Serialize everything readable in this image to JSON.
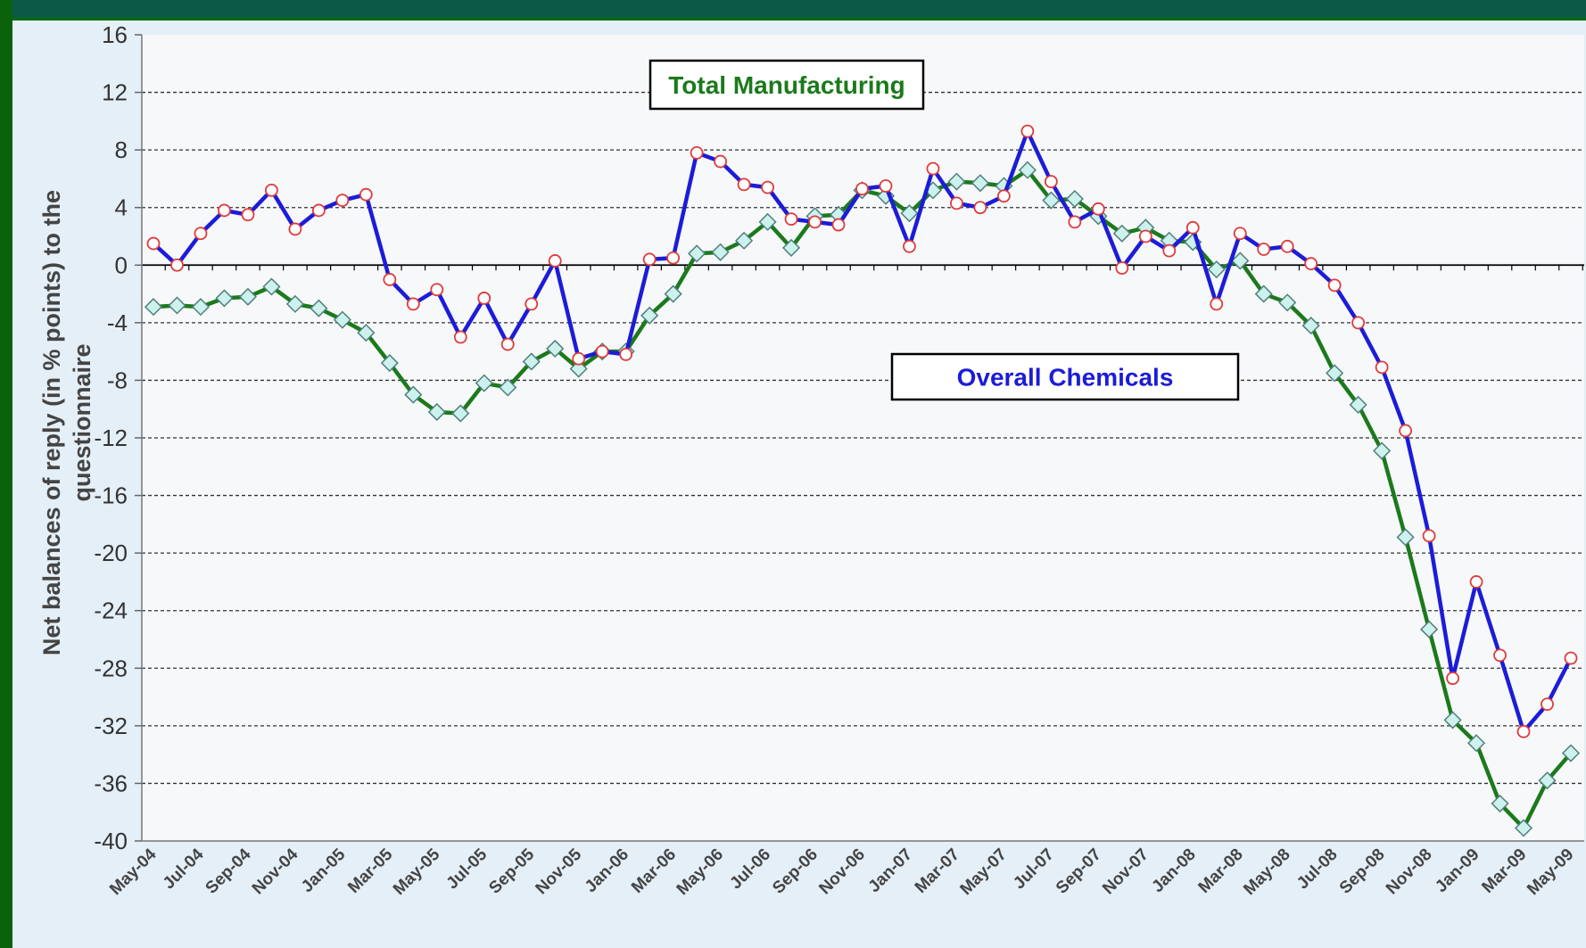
{
  "chart_data": {
    "type": "line",
    "y_label": "Net balances of reply (in % points) to the questionnaire",
    "categories": [
      "May-04",
      null,
      "Jul-04",
      null,
      "Sep-04",
      null,
      "Nov-04",
      null,
      "Jan-05",
      null,
      "Mar-05",
      null,
      "May-05",
      null,
      "Jul-05",
      null,
      "Sep-05",
      null,
      "Nov-05",
      null,
      "Jan-06",
      null,
      "Mar-06",
      null,
      "May-06",
      null,
      "Jul-06",
      null,
      "Sep-06",
      null,
      "Nov-06",
      null,
      "Jan-07",
      null,
      "Mar-07",
      null,
      "May-07",
      null,
      "Jul-07",
      null,
      "Sep-07",
      null,
      "Nov-07",
      null,
      "Jan-08",
      null,
      "Mar-08",
      null,
      "May-08",
      null,
      "Jul-08",
      null,
      "Sep-08",
      null,
      "Nov-08",
      null,
      "Jan-09",
      null,
      "Mar-09",
      null,
      "May-09"
    ],
    "series": [
      {
        "name": "Overall Chemicals",
        "color": "#1c1cd8",
        "marker": "circle",
        "marker_fill": "#ffffff",
        "marker_stroke": "#e03a3a",
        "values": [
          1.5,
          0,
          2.2,
          3.8,
          3.5,
          5.2,
          2.5,
          3.8,
          4.5,
          4.9,
          -1,
          -2.7,
          -1.7,
          -5,
          -2.3,
          -5.5,
          -2.7,
          0.3,
          -6.5,
          -6.0,
          -6.2,
          0.4,
          0.5,
          7.8,
          7.2,
          5.6,
          5.4,
          3.2,
          3.0,
          2.8,
          5.3,
          5.5,
          1.3,
          6.7,
          4.3,
          4.0,
          4.8,
          9.3,
          5.8,
          3.0,
          3.9,
          -0.2,
          2.0,
          1.0,
          2.6,
          -2.7,
          2.2,
          1.1,
          1.3,
          0.1,
          -1.4,
          -4.0,
          -7.1,
          -11.5,
          -18.8,
          -28.7,
          -22,
          -27.1,
          -32.4,
          -30.5,
          -27.3
        ]
      },
      {
        "name": "Total Manufacturing",
        "color": "#1b7a1b",
        "marker": "diamond",
        "marker_fill": "#cdf1ec",
        "marker_stroke": "#4f7f7f",
        "values": [
          -2.9,
          -2.8,
          -2.9,
          -2.3,
          -2.2,
          -1.5,
          -2.7,
          -3.0,
          -3.8,
          -4.7,
          -6.8,
          -9.0,
          -10.2,
          -10.3,
          -8.2,
          -8.5,
          -6.7,
          -5.8,
          -7.2,
          -6.0,
          -6.0,
          -3.5,
          -2.0,
          0.8,
          0.9,
          1.7,
          3.0,
          1.2,
          3.4,
          3.5,
          5.2,
          4.8,
          3.6,
          5.2,
          5.8,
          5.7,
          5.5,
          6.6,
          4.5,
          4.6,
          3.4,
          2.2,
          2.6,
          1.7,
          1.6,
          -0.3,
          0.3,
          -2.0,
          -2.6,
          -4.2,
          -7.5,
          -9.7,
          -12.9,
          -18.9,
          -25.3,
          -31.6,
          -33.2,
          -37.4,
          -39.1,
          -35.8,
          -33.9
        ]
      }
    ],
    "ylim": [
      -40,
      16
    ],
    "yticks": [
      -40,
      -36,
      -32,
      -28,
      -24,
      -20,
      -16,
      -12,
      -8,
      -4,
      0,
      4,
      8,
      12,
      16
    ],
    "grid": true
  }
}
